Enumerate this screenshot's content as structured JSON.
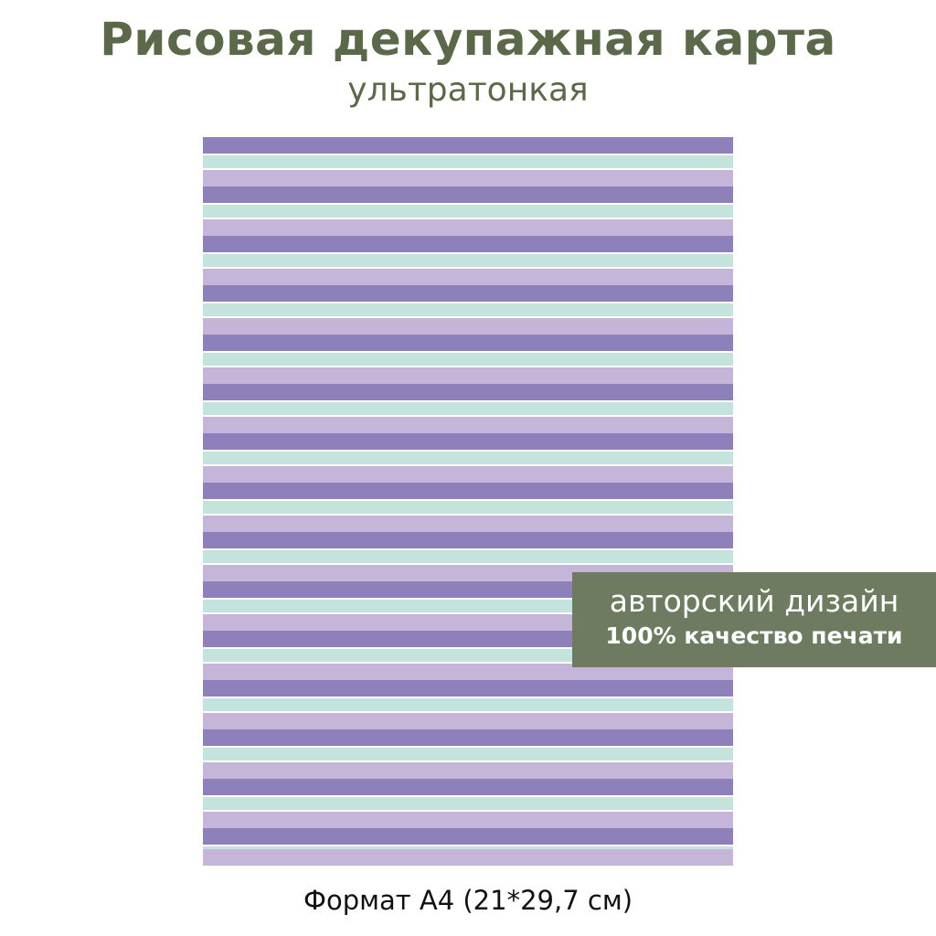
{
  "header": {
    "title": "Рисовая декупажная карта",
    "subtitle": "ультратонкая"
  },
  "badge": {
    "line1": "авторский дизайн",
    "line2": "100% качество печати"
  },
  "footer": {
    "format": "Формат А4 (21*29,7 см)"
  },
  "colors": {
    "title": "#5b6849",
    "badge": "#6f7b61",
    "stripe_purple": "#8e80ba",
    "stripe_lavender": "#c5b6d9",
    "stripe_mint": "#c4e3dd"
  }
}
